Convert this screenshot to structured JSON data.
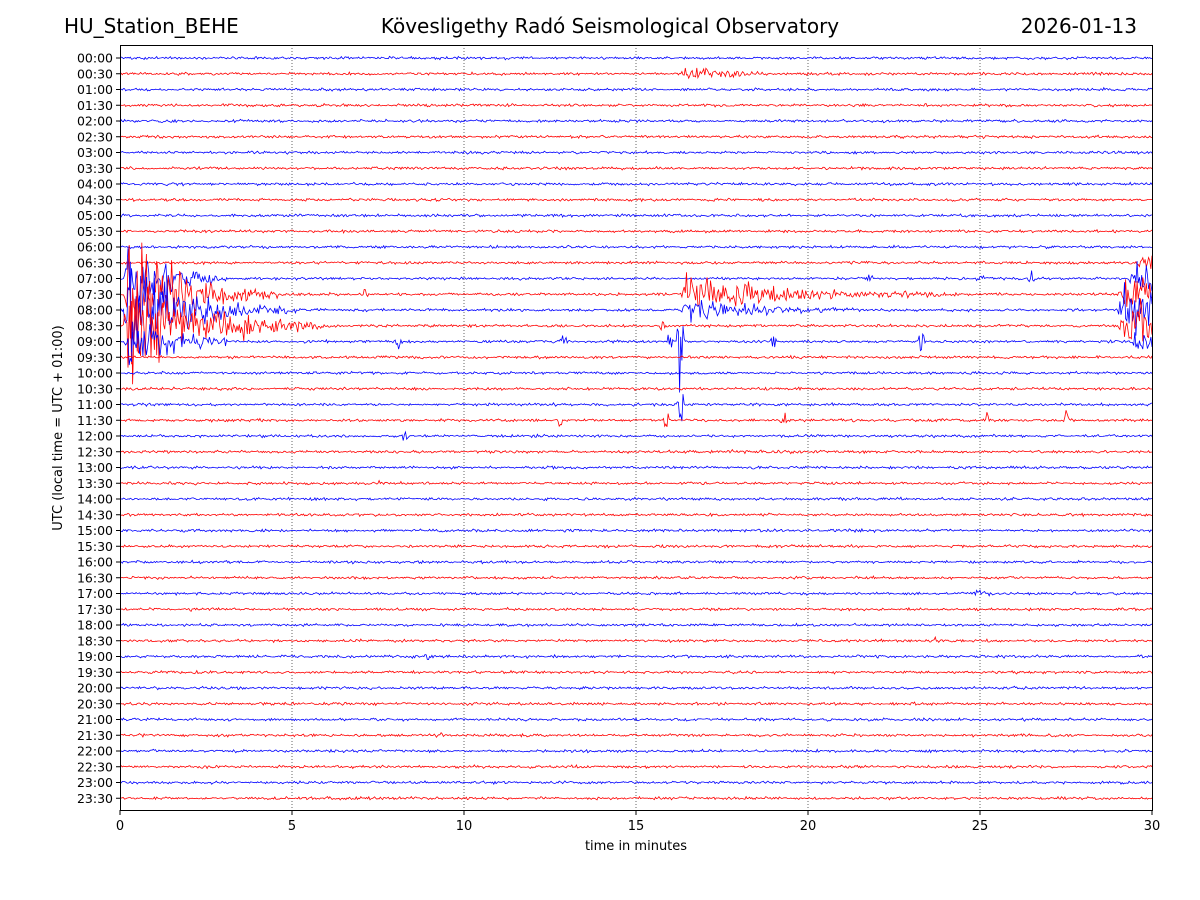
{
  "chart_data": {
    "type": "line",
    "title_left": "HU_Station_BEHE",
    "title": "Kövesligethy Radó Seismological Observatory",
    "title_right": "2026-01-13",
    "xlabel": "time in minutes",
    "ylabel": "UTC (local time = UTC + 01:00)",
    "xlim": [
      0,
      30
    ],
    "xticks": [
      0,
      5,
      10,
      15,
      20,
      25,
      30
    ],
    "grid": "vertical dotted at x ticks",
    "colors": {
      "even_rows": "#0000ff",
      "odd_rows": "#ff0000",
      "frame": "#000000"
    },
    "rows": [
      "00:00",
      "00:30",
      "01:00",
      "01:30",
      "02:00",
      "02:30",
      "03:00",
      "03:30",
      "04:00",
      "04:30",
      "05:00",
      "05:30",
      "06:00",
      "06:30",
      "07:00",
      "07:30",
      "08:00",
      "08:30",
      "09:00",
      "09:30",
      "10:00",
      "10:30",
      "11:00",
      "11:30",
      "12:00",
      "12:30",
      "13:00",
      "13:30",
      "14:00",
      "14:30",
      "15:00",
      "15:30",
      "16:00",
      "16:30",
      "17:00",
      "17:30",
      "18:00",
      "18:30",
      "19:00",
      "19:30",
      "20:00",
      "20:30",
      "21:00",
      "21:30",
      "22:00",
      "22:30",
      "23:00",
      "23:30"
    ],
    "events": [
      {
        "row": "00:30",
        "start_min": 16.3,
        "duration_min": 3.2,
        "amplitude": 1.4,
        "decay_min": 0.9
      },
      {
        "row": "07:30",
        "start_min": 0.1,
        "duration_min": 4.5,
        "amplitude": 9.0,
        "decay_min": 1.3
      },
      {
        "row": "08:00",
        "start_min": 0.1,
        "duration_min": 5.0,
        "amplitude": 8.0,
        "decay_min": 1.4
      },
      {
        "row": "08:30",
        "start_min": 0.1,
        "duration_min": 6.0,
        "amplitude": 7.5,
        "decay_min": 1.6
      },
      {
        "row": "07:00",
        "start_min": 0.1,
        "duration_min": 3.0,
        "amplitude": 5.0,
        "decay_min": 1.0
      },
      {
        "row": "09:00",
        "start_min": 0.1,
        "duration_min": 3.0,
        "amplitude": 5.0,
        "decay_min": 1.0
      },
      {
        "row": "07:30",
        "start_min": 16.3,
        "duration_min": 8.0,
        "amplitude": 2.6,
        "decay_min": 2.5
      },
      {
        "row": "08:00",
        "start_min": 16.3,
        "duration_min": 5.0,
        "amplitude": 1.6,
        "decay_min": 1.8
      },
      {
        "row": "07:30",
        "start_min": 29.0,
        "duration_min": 1.0,
        "amplitude": 2.2,
        "decay_min": 5.0
      },
      {
        "row": "08:00",
        "start_min": 29.0,
        "duration_min": 1.0,
        "amplitude": 3.0,
        "decay_min": 5.0
      },
      {
        "row": "08:30",
        "start_min": 29.0,
        "duration_min": 1.0,
        "amplitude": 2.8,
        "decay_min": 5.0
      },
      {
        "row": "09:00",
        "start_min": 29.3,
        "duration_min": 0.7,
        "amplitude": 1.8,
        "decay_min": 5.0
      },
      {
        "row": "07:00",
        "start_min": 29.3,
        "duration_min": 0.7,
        "amplitude": 1.5,
        "decay_min": 5.0
      },
      {
        "row": "06:30",
        "start_min": 29.5,
        "duration_min": 0.5,
        "amplitude": 1.0,
        "decay_min": 5.0
      },
      {
        "row": "08:30",
        "start_min": 3.3,
        "duration_min": 2.5,
        "amplitude": 0.6,
        "decay_min": 1.2
      },
      {
        "row": "13:30",
        "start_min": 7.4,
        "duration_min": 0.4,
        "amplitude": 0.5,
        "decay_min": 0.2
      },
      {
        "row": "17:30",
        "start_min": 2.0,
        "duration_min": 0.5,
        "amplitude": 0.4,
        "decay_min": 0.2
      },
      {
        "row": "17:30",
        "start_min": 5.5,
        "duration_min": 0.5,
        "amplitude": 0.4,
        "decay_min": 0.2
      },
      {
        "row": "18:30",
        "start_min": 23.5,
        "duration_min": 0.4,
        "amplitude": 0.5,
        "decay_min": 0.2
      },
      {
        "row": "19:00",
        "start_min": 8.8,
        "duration_min": 0.4,
        "amplitude": 0.5,
        "decay_min": 0.2
      },
      {
        "row": "21:30",
        "start_min": 0.5,
        "duration_min": 0.3,
        "amplitude": 0.5,
        "decay_min": 0.15
      },
      {
        "row": "21:30",
        "start_min": 9.1,
        "duration_min": 0.3,
        "amplitude": 0.4,
        "decay_min": 0.15
      },
      {
        "row": "13:30",
        "start_min": 20.5,
        "duration_min": 0.5,
        "amplitude": 0.4,
        "decay_min": 0.2
      },
      {
        "row": "17:00",
        "start_min": 24.8,
        "duration_min": 0.6,
        "amplitude": 0.4,
        "decay_min": 0.3
      },
      {
        "row": "12:30",
        "start_min": 17.5,
        "duration_min": 2.0,
        "amplitude": 0.3,
        "decay_min": 1.0
      }
    ],
    "spikes": [
      {
        "row": "09:00",
        "x_min": 8.1,
        "amplitude": 1.2
      },
      {
        "row": "09:00",
        "x_min": 12.9,
        "amplitude": 1.1
      },
      {
        "row": "09:00",
        "x_min": 16.0,
        "amplitude": 1.3
      },
      {
        "row": "09:00",
        "x_min": 19.0,
        "amplitude": 1.2
      },
      {
        "row": "09:00",
        "x_min": 23.3,
        "amplitude": 1.6
      },
      {
        "row": "11:30",
        "x_min": 12.8,
        "amplitude": 1.3
      },
      {
        "row": "11:30",
        "x_min": 15.9,
        "amplitude": 1.0
      },
      {
        "row": "11:30",
        "x_min": 19.3,
        "amplitude": 1.0
      },
      {
        "row": "11:30",
        "x_min": 25.2,
        "amplitude": 0.9
      },
      {
        "row": "11:30",
        "x_min": 27.5,
        "amplitude": 0.8
      },
      {
        "row": "12:00",
        "x_min": 8.3,
        "amplitude": 1.1
      },
      {
        "row": "07:00",
        "x_min": 21.8,
        "amplitude": 0.8
      },
      {
        "row": "07:00",
        "x_min": 25.0,
        "amplitude": 0.9
      },
      {
        "row": "07:00",
        "x_min": 26.5,
        "amplitude": 0.7
      },
      {
        "row": "07:30",
        "x_min": 7.1,
        "amplitude": 0.8
      },
      {
        "row": "09:00",
        "x_min": 16.3,
        "amplitude": 9.0
      },
      {
        "row": "11:00",
        "x_min": 16.3,
        "amplitude": 5.0
      },
      {
        "row": "08:30",
        "x_min": 15.8,
        "amplitude": 0.6
      }
    ]
  }
}
